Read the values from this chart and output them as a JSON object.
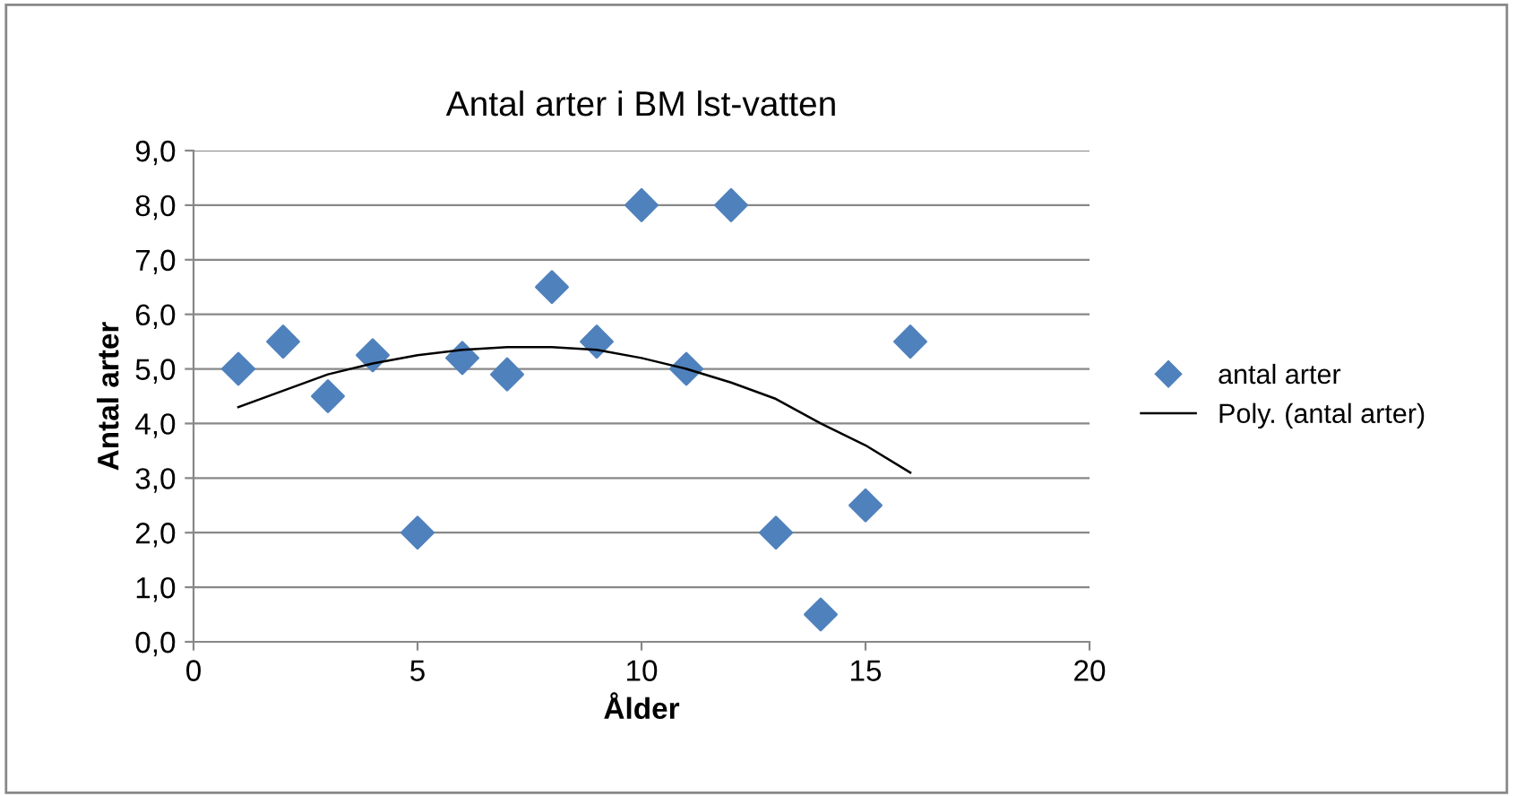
{
  "chart_data": {
    "type": "scatter",
    "title": "Antal arter i BM lst-vatten",
    "xlabel": "Ålder",
    "ylabel": "Antal arter",
    "x": [
      1,
      2,
      3,
      4,
      5,
      6,
      7,
      8,
      9,
      10,
      11,
      12,
      13,
      14,
      15,
      16
    ],
    "series": [
      {
        "name": "antal arter",
        "color": "#4f81bd",
        "marker": "diamond",
        "values": [
          5.0,
          5.5,
          4.5,
          5.25,
          2.0,
          5.2,
          4.9,
          6.5,
          5.5,
          8.0,
          5.0,
          8.0,
          2.0,
          0.5,
          2.5,
          5.5
        ]
      },
      {
        "name": "Poly. (antal arter)",
        "type": "line",
        "color": "#000000",
        "marker": "none",
        "line_style": "solid",
        "values": [
          4.3,
          4.6,
          4.9,
          5.1,
          5.25,
          5.35,
          5.4,
          5.4,
          5.35,
          5.2,
          5.0,
          4.75,
          4.45,
          4.0,
          3.6,
          3.1
        ]
      }
    ],
    "xlim": [
      0,
      20
    ],
    "xticks": [
      0,
      5,
      10,
      15,
      20
    ],
    "ylim": [
      0,
      9
    ],
    "yticks": [
      {
        "value": 0,
        "label": "0,0"
      },
      {
        "value": 1,
        "label": "1,0"
      },
      {
        "value": 2,
        "label": "2,0"
      },
      {
        "value": 3,
        "label": "3,0"
      },
      {
        "value": 4,
        "label": "4,0"
      },
      {
        "value": 5,
        "label": "5,0"
      },
      {
        "value": 6,
        "label": "6,0"
      },
      {
        "value": 7,
        "label": "7,0"
      },
      {
        "value": 8,
        "label": "8,0"
      },
      {
        "value": 9,
        "label": "9,0"
      }
    ],
    "grid": "y",
    "legend": "right"
  }
}
